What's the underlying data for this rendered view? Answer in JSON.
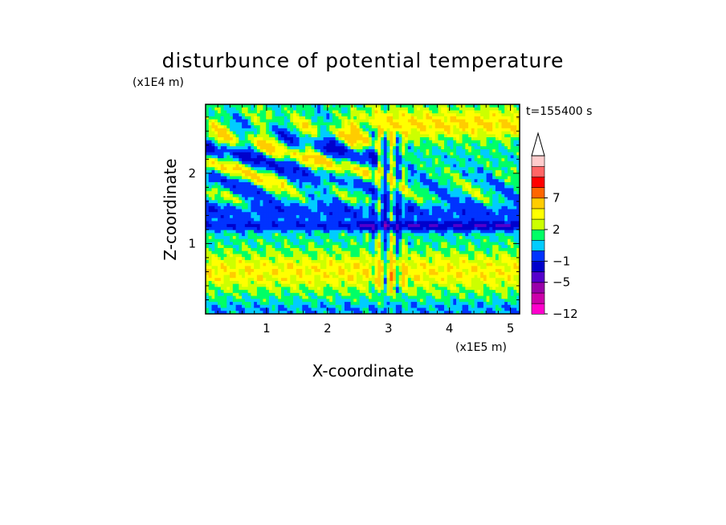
{
  "chart_data": {
    "type": "heatmap",
    "title": "disturbunce of potential temperature",
    "xlabel": "X-coordinate",
    "ylabel": "Z-coordinate",
    "x_unit": "(x1E5 m)",
    "y_unit": "(x1E4 m)",
    "time_label": "t=155400  s",
    "xlim": [
      0,
      5.15
    ],
    "ylim": [
      0,
      2.98
    ],
    "x_ticks": [
      {
        "value": 1,
        "label": "1"
      },
      {
        "value": 2,
        "label": "2"
      },
      {
        "value": 3,
        "label": "3"
      },
      {
        "value": 4,
        "label": "4"
      },
      {
        "value": 5,
        "label": "5"
      }
    ],
    "y_ticks": [
      {
        "value": 1,
        "label": "1"
      },
      {
        "value": 2,
        "label": "2"
      }
    ],
    "colorbar": {
      "levels": [
        -12,
        -9,
        -7,
        -5,
        -3,
        -1,
        0,
        1,
        2,
        3,
        5,
        7,
        9,
        12
      ],
      "colors": [
        "#ff00cc",
        "#cc00aa",
        "#9900aa",
        "#5500cc",
        "#0000cc",
        "#0033ff",
        "#00ccff",
        "#00ff66",
        "#ccff00",
        "#ffff00",
        "#ffcc00",
        "#ff6600",
        "#ff0000",
        "#ff6666",
        "#ffcccc"
      ],
      "labels": [
        {
          "value": -12,
          "label": "−12"
        },
        {
          "value": -5,
          "label": "−5"
        },
        {
          "value": -1,
          "label": "−1"
        },
        {
          "value": 2,
          "label": "2"
        },
        {
          "value": 7,
          "label": "7"
        }
      ]
    }
  }
}
